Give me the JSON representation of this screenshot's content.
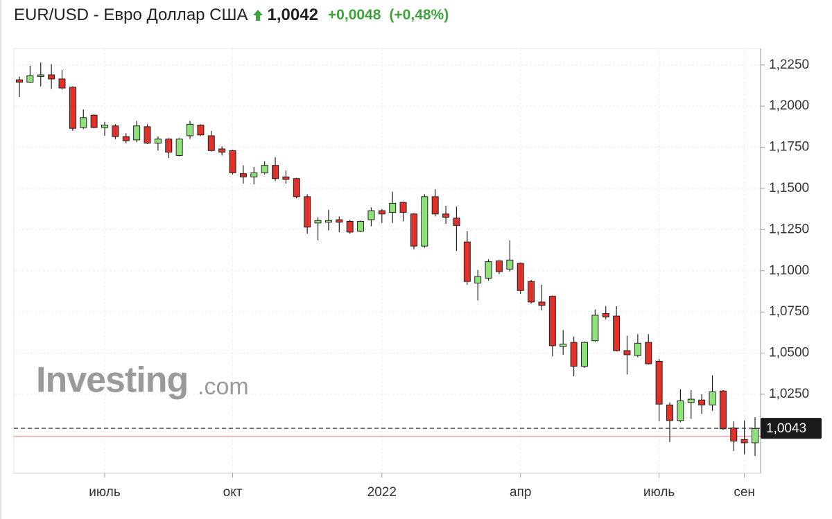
{
  "chart_data": {
    "type": "candlestick",
    "title": "EUR/USD - Евро Доллар США",
    "price": "1,0042",
    "change": "+0,0048",
    "change_percent": "(+0,48%)",
    "watermark": "Investing",
    "watermark_suffix": ".com",
    "categories": [
      null,
      null,
      null,
      null,
      null,
      null,
      null,
      null,
      "июль",
      null,
      null,
      null,
      null,
      null,
      null,
      null,
      null,
      null,
      null,
      null,
      "окт",
      null,
      null,
      null,
      null,
      null,
      null,
      null,
      null,
      null,
      null,
      null,
      null,
      null,
      "2022",
      null,
      null,
      null,
      null,
      null,
      null,
      null,
      null,
      null,
      null,
      null,
      null,
      "апр",
      null,
      null,
      null,
      null,
      null,
      null,
      null,
      null,
      null,
      null,
      null,
      null,
      "июль",
      null,
      null,
      null,
      null,
      null,
      null,
      null,
      "сен",
      null
    ],
    "up_color": "#8ee27a",
    "down_color": "#e0322b",
    "series": [
      {
        "open": [
          1.216,
          1.2145,
          1.218,
          1.219,
          1.2165,
          1.2115,
          1.187,
          1.1945,
          1.187,
          1.188,
          1.1815,
          1.1795,
          1.1875,
          1.1775,
          1.18,
          1.17,
          1.182,
          1.1885,
          1.182,
          1.174,
          1.173,
          1.159,
          1.157,
          1.1595,
          1.164,
          1.157,
          1.156,
          1.145,
          1.129,
          1.1295,
          1.131,
          1.13,
          1.124,
          1.131,
          1.1365,
          1.1355,
          1.1415,
          1.1345,
          1.115,
          1.145,
          1.1345,
          1.132,
          1.1175,
          1.0925,
          1.0955,
          1.106,
          1.101,
          1.1045,
          1.0935,
          1.081,
          1.0845,
          1.054,
          1.0565,
          1.042,
          1.0575,
          1.074,
          1.0725,
          1.0515,
          1.0485,
          1.0565,
          1.045,
          1.0185,
          1.009,
          1.02,
          1.0215,
          1.0185,
          1.027,
          1.0045,
          0.9975,
          0.9955
        ],
        "high": [
          1.218,
          1.2245,
          1.2265,
          1.2255,
          1.222,
          1.212,
          1.198,
          1.195,
          1.1905,
          1.189,
          1.1835,
          1.191,
          1.189,
          1.1815,
          1.1805,
          1.1805,
          1.191,
          1.189,
          1.185,
          1.1755,
          1.1735,
          1.164,
          1.163,
          1.1665,
          1.169,
          1.161,
          1.1565,
          1.1465,
          1.1325,
          1.137,
          1.133,
          1.131,
          1.1305,
          1.1385,
          1.1375,
          1.148,
          1.142,
          1.135,
          1.1465,
          1.1495,
          1.1395,
          1.139,
          1.124,
          1.1005,
          1.107,
          1.1065,
          1.1185,
          1.105,
          1.0945,
          1.0915,
          1.085,
          1.064,
          1.06,
          1.057,
          1.0765,
          1.0785,
          1.0785,
          1.0605,
          1.0615,
          1.0615,
          1.0465,
          1.02,
          1.028,
          1.0275,
          1.025,
          1.0365,
          1.0275,
          1.0085,
          1.009,
          1.011
        ],
        "low": [
          1.2055,
          1.214,
          1.212,
          1.2105,
          1.21,
          1.185,
          1.186,
          1.1865,
          1.182,
          1.18,
          1.1775,
          1.178,
          1.177,
          1.173,
          1.1685,
          1.1695,
          1.18,
          1.182,
          1.1725,
          1.17,
          1.1585,
          1.153,
          1.1525,
          1.1585,
          1.1545,
          1.153,
          1.144,
          1.1225,
          1.1185,
          1.1245,
          1.1235,
          1.1225,
          1.1235,
          1.127,
          1.129,
          1.129,
          1.13,
          1.113,
          1.114,
          1.133,
          1.1285,
          1.112,
          1.0915,
          1.082,
          1.094,
          1.098,
          1.0995,
          1.086,
          1.08,
          1.076,
          1.048,
          1.049,
          1.036,
          1.041,
          1.057,
          1.0705,
          1.051,
          1.037,
          1.0475,
          1.043,
          1.0085,
          0.996,
          1.008,
          1.01,
          1.013,
          1.015,
          1.0035,
          0.9905,
          0.9885,
          0.9875
        ],
        "close": [
          1.2145,
          1.2185,
          1.219,
          1.2165,
          1.211,
          1.1865,
          1.193,
          1.187,
          1.1885,
          1.1815,
          1.179,
          1.188,
          1.1775,
          1.18,
          1.172,
          1.18,
          1.189,
          1.1825,
          1.173,
          1.172,
          1.1595,
          1.157,
          1.1595,
          1.164,
          1.156,
          1.1555,
          1.145,
          1.1265,
          1.1305,
          1.1305,
          1.1295,
          1.1235,
          1.13,
          1.1365,
          1.1345,
          1.141,
          1.1355,
          1.115,
          1.145,
          1.1345,
          1.1325,
          1.1275,
          1.0935,
          1.0965,
          1.1055,
          1.0995,
          1.1065,
          1.088,
          1.081,
          1.079,
          1.0545,
          1.0555,
          1.042,
          1.0565,
          1.073,
          1.072,
          1.0515,
          1.049,
          1.056,
          1.0435,
          1.019,
          1.009,
          1.021,
          1.022,
          1.0185,
          1.0265,
          1.004,
          0.9965,
          0.9955,
          1.0042
        ]
      }
    ],
    "last_price": {
      "value": 1.0043,
      "label": "1,0043"
    },
    "reference_line": 0.9994,
    "ylim": [
      0.977,
      1.235
    ],
    "yticks": [
      {
        "value": 1.025,
        "label": "1,0250"
      },
      {
        "value": 1.05,
        "label": "1,0500"
      },
      {
        "value": 1.075,
        "label": "1,0750"
      },
      {
        "value": 1.1,
        "label": "1,1000"
      },
      {
        "value": 1.125,
        "label": "1,1250"
      },
      {
        "value": 1.15,
        "label": "1,1500"
      },
      {
        "value": 1.175,
        "label": "1,1750"
      },
      {
        "value": 1.2,
        "label": "1,2000"
      },
      {
        "value": 1.225,
        "label": "1,2250"
      }
    ],
    "grid": true
  }
}
